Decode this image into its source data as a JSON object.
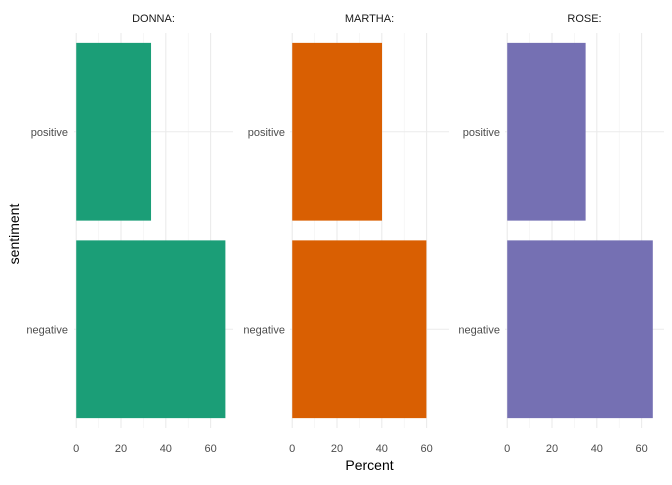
{
  "chart_data": {
    "type": "bar",
    "orientation": "horizontal",
    "facet_by": "character",
    "categories": [
      "positive",
      "negative"
    ],
    "panels": [
      {
        "label": "DONNA:",
        "color": "#1b9e77",
        "values": [
          33.4,
          66.6
        ]
      },
      {
        "label": "MARTHA:",
        "color": "#d95f02",
        "values": [
          40.1,
          59.9
        ]
      },
      {
        "label": "ROSE:",
        "color": "#7570b3",
        "values": [
          35.0,
          65.0
        ]
      }
    ],
    "xlabel": "Percent",
    "ylabel": "sentiment",
    "xlim": [
      -1,
      70
    ],
    "x_ticks": [
      0,
      20,
      40,
      60
    ],
    "x_tick_labels": [
      "0",
      "20",
      "40",
      "60"
    ],
    "legend": "none",
    "grid": true
  }
}
